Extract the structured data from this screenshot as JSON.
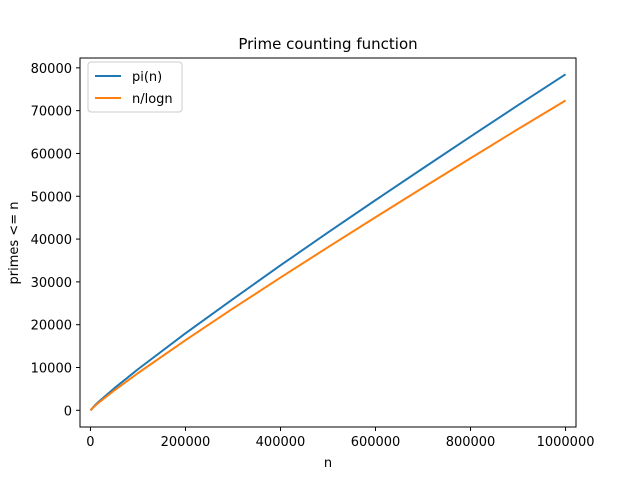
{
  "chart_data": {
    "type": "line",
    "title": "Prime counting function",
    "xlabel": "n",
    "ylabel": "primes <= n",
    "xlim": [
      -22000,
      1022000
    ],
    "ylim": [
      -3900,
      82300
    ],
    "xticks": [
      0,
      200000,
      400000,
      600000,
      800000,
      1000000
    ],
    "xtick_labels": [
      "0",
      "200000",
      "400000",
      "600000",
      "800000",
      "1000000"
    ],
    "yticks": [
      0,
      10000,
      20000,
      30000,
      40000,
      50000,
      60000,
      70000,
      80000
    ],
    "ytick_labels": [
      "0",
      "10000",
      "20000",
      "30000",
      "40000",
      "50000",
      "60000",
      "70000",
      "80000"
    ],
    "grid": false,
    "legend_position": "top-left",
    "series": [
      {
        "name": "pi(n)",
        "color": "#1f77b4",
        "x": [
          2,
          10000,
          20000,
          50000,
          100000,
          200000,
          300000,
          400000,
          500000,
          600000,
          700000,
          800000,
          900000,
          1000000
        ],
        "values": [
          1,
          1229,
          2262,
          5133,
          9592,
          17984,
          25997,
          33860,
          41538,
          49098,
          56543,
          63951,
          71274,
          78498
        ]
      },
      {
        "name": "n/logn",
        "color": "#ff7f0e",
        "x": [
          2,
          10000,
          20000,
          50000,
          100000,
          200000,
          300000,
          400000,
          500000,
          600000,
          700000,
          800000,
          900000,
          1000000
        ],
        "values": [
          2.885,
          1086,
          2019,
          4621,
          8686,
          16385,
          23788,
          31009,
          38103,
          45101,
          52025,
          58886,
          65695,
          72382
        ]
      }
    ]
  }
}
